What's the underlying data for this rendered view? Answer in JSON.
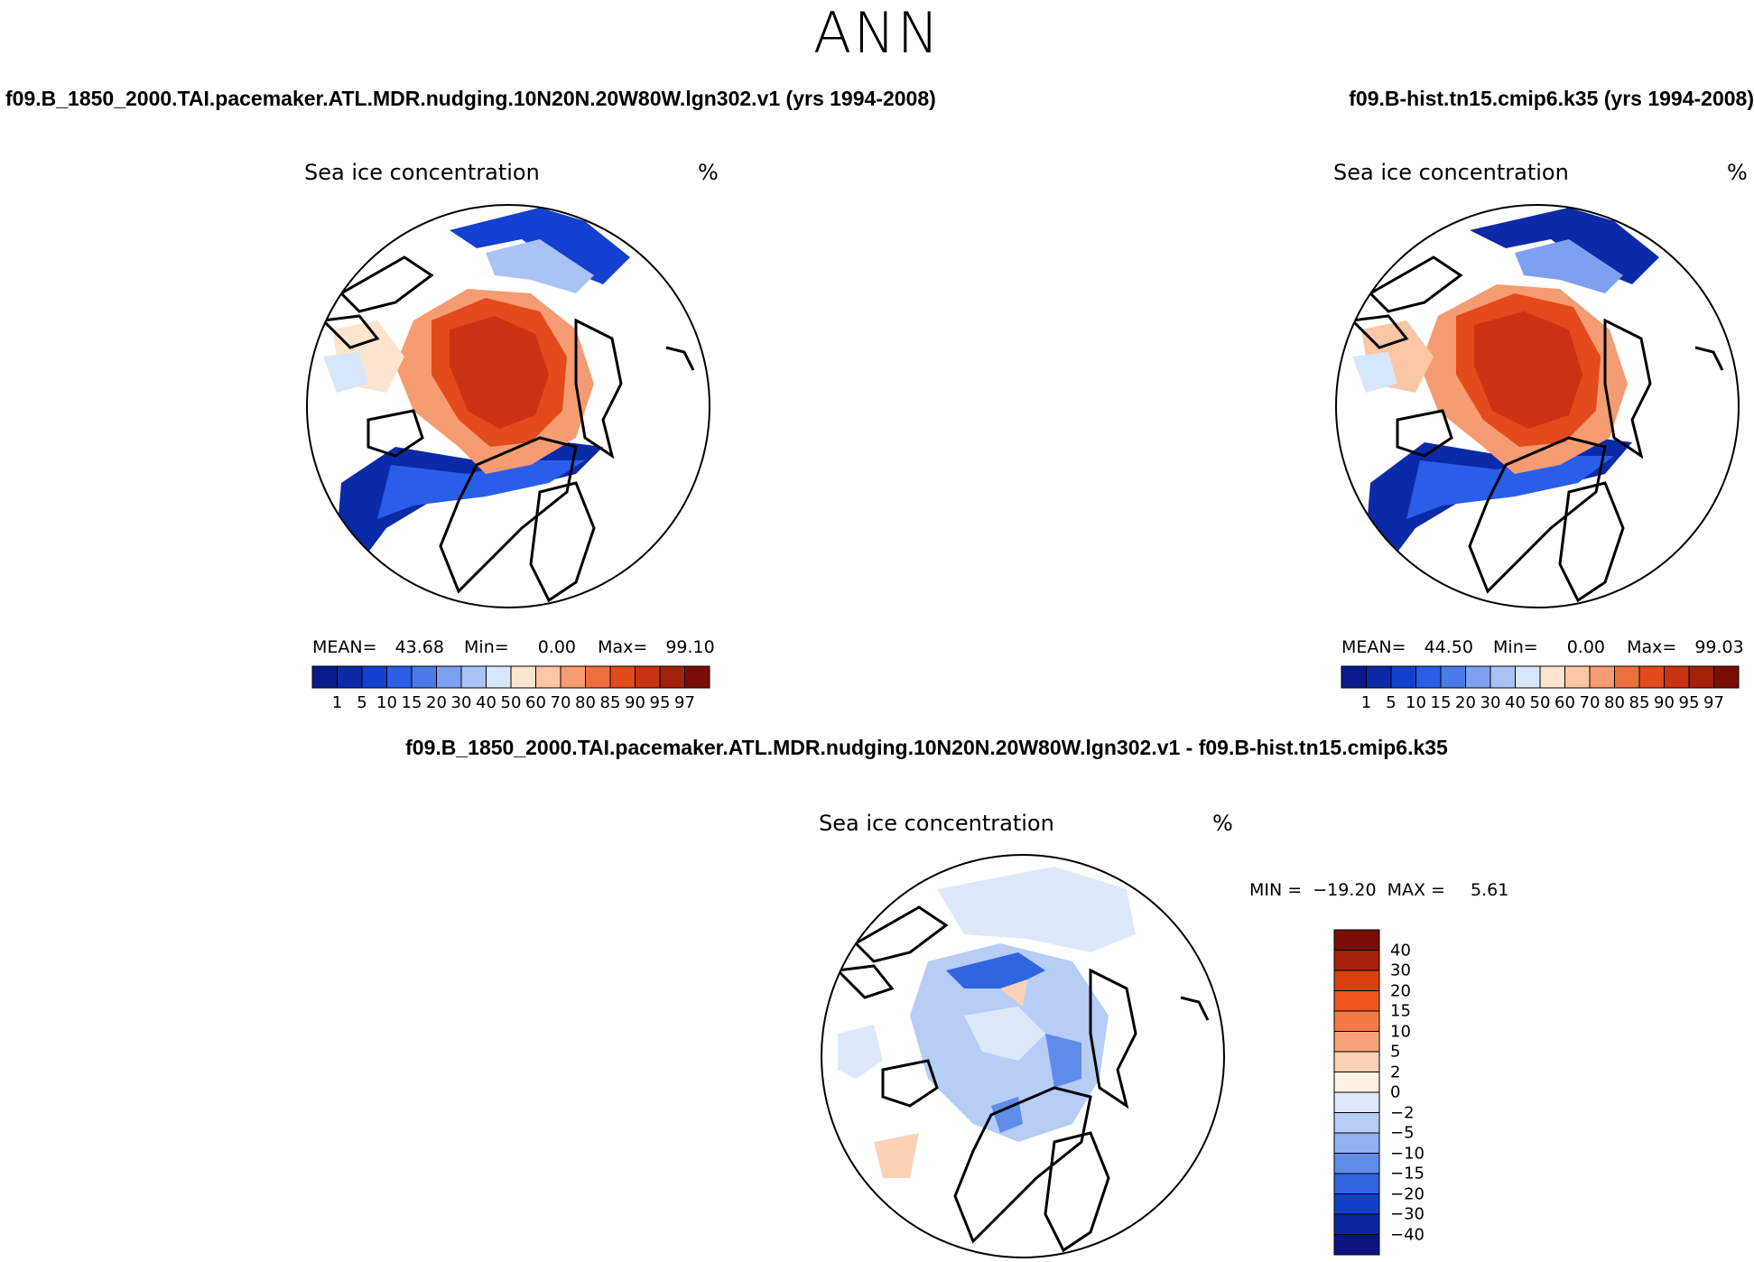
{
  "main_title": "ANN",
  "panels": {
    "left": {
      "case_title": "f09.B_1850_2000.TAI.pacemaker.ATL.MDR.nudging.10N20N.20W80W.lgn302.v1 (yrs 1994-2008)",
      "variable": "Sea ice concentration",
      "units": "%",
      "mean_label": "MEAN=",
      "mean": "43.68",
      "min_label": "Min=",
      "min": "0.00",
      "max_label": "Max=",
      "max": "99.10"
    },
    "right": {
      "case_title": "f09.B-hist.tn15.cmip6.k35 (yrs 1994-2008)",
      "variable": "Sea ice concentration",
      "units": "%",
      "mean_label": "MEAN=",
      "mean": "44.50",
      "min_label": "Min=",
      "min": "0.00",
      "max_label": "Max=",
      "max": "99.03"
    },
    "diff": {
      "case_title": "f09.B_1850_2000.TAI.pacemaker.ATL.MDR.nudging.10N20N.20W80W.lgn302.v1 - f09.B-hist.tn15.cmip6.k35",
      "variable": "Sea ice concentration",
      "units": "%",
      "min_label": "MIN =",
      "min": "−19.20",
      "max_label": "MAX =",
      "max": "5.61"
    }
  },
  "chart_data": [
    {
      "type": "heatmap",
      "projection": "north-polar-stereographic",
      "title": "Sea ice concentration",
      "units": "%",
      "mean": 43.68,
      "min": 0.0,
      "max": 99.1,
      "colorbar": {
        "orientation": "horizontal",
        "levels": [
          "1",
          "5",
          "10",
          "15",
          "20",
          "30",
          "40",
          "50",
          "60",
          "70",
          "80",
          "85",
          "90",
          "95",
          "97"
        ],
        "colors": [
          "#0a1a8c",
          "#0b2aa8",
          "#1340cf",
          "#2a5ee8",
          "#4a7be8",
          "#7ea0f0",
          "#aac3f5",
          "#d6e6fb",
          "#fde4cf",
          "#fbc6a3",
          "#f59c72",
          "#ee6f3e",
          "#e34a1c",
          "#c93212",
          "#a3200a",
          "#7a0e05"
        ]
      }
    },
    {
      "type": "heatmap",
      "projection": "north-polar-stereographic",
      "title": "Sea ice concentration",
      "units": "%",
      "mean": 44.5,
      "min": 0.0,
      "max": 99.03,
      "colorbar": {
        "orientation": "horizontal",
        "levels": [
          "1",
          "5",
          "10",
          "15",
          "20",
          "30",
          "40",
          "50",
          "60",
          "70",
          "80",
          "85",
          "90",
          "95",
          "97"
        ],
        "colors": [
          "#0a1a8c",
          "#0b2aa8",
          "#1340cf",
          "#2a5ee8",
          "#4a7be8",
          "#7ea0f0",
          "#aac3f5",
          "#d6e6fb",
          "#fde4cf",
          "#fbc6a3",
          "#f59c72",
          "#ee6f3e",
          "#e34a1c",
          "#c93212",
          "#a3200a",
          "#7a0e05"
        ]
      }
    },
    {
      "type": "heatmap",
      "projection": "north-polar-stereographic",
      "title": "Sea ice concentration",
      "units": "%",
      "min": -19.2,
      "max": 5.61,
      "colorbar": {
        "orientation": "vertical",
        "levels": [
          "40",
          "30",
          "20",
          "15",
          "10",
          "5",
          "2",
          "0",
          "−2",
          "−5",
          "−10",
          "−15",
          "−20",
          "−30",
          "−40"
        ],
        "colors": [
          "#7a0e05",
          "#a3200a",
          "#d8400f",
          "#f0561e",
          "#f47a45",
          "#f8a27a",
          "#fcd2b6",
          "#fdf1e3",
          "#dde9fb",
          "#b7cdf6",
          "#8fb0f2",
          "#5f8cea",
          "#2f66e0",
          "#1140c8",
          "#0a25a0",
          "#0a1580"
        ]
      }
    }
  ]
}
